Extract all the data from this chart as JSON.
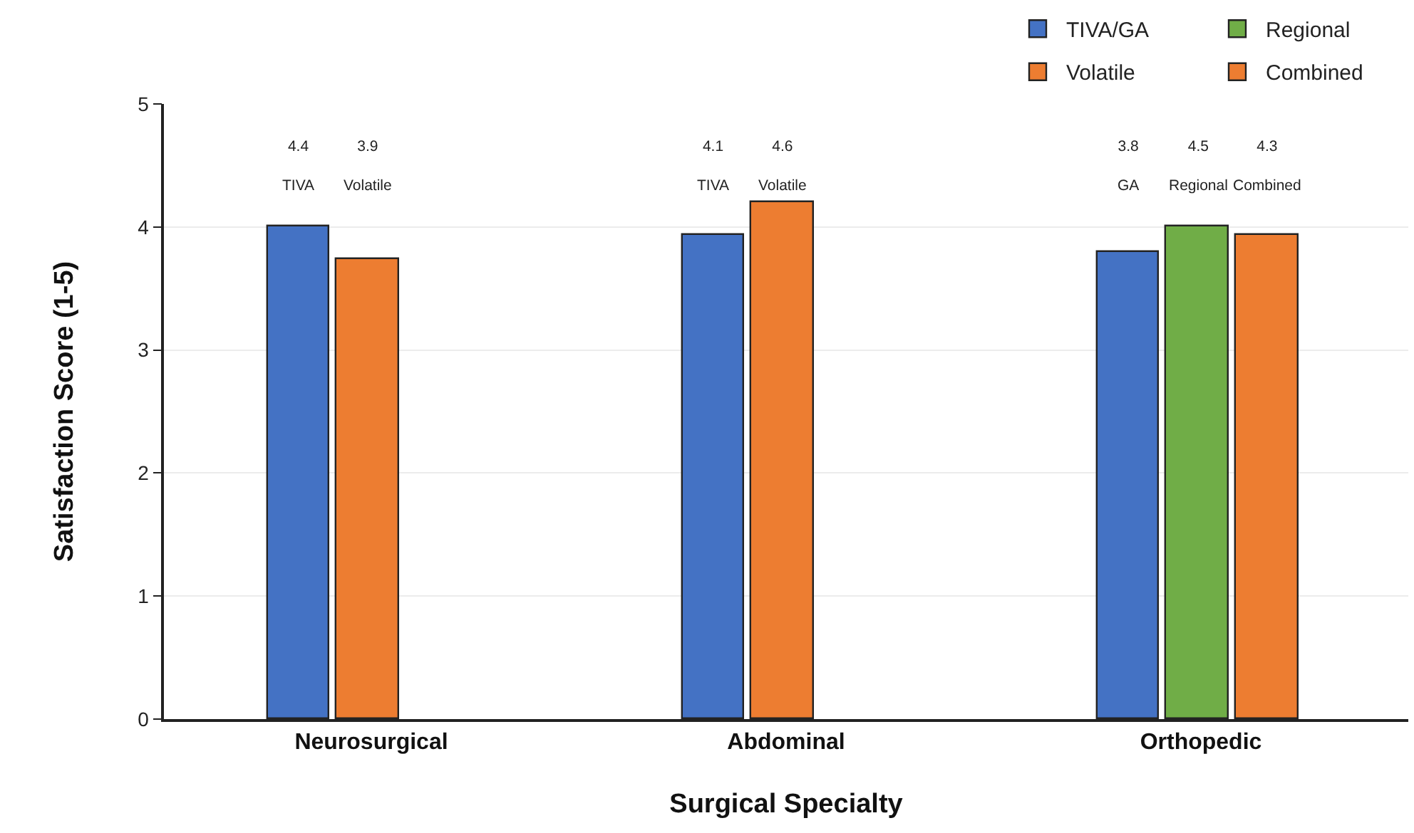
{
  "chart_data": {
    "type": "bar",
    "xlabel": "Surgical Specialty",
    "ylabel": "Satisfaction Score (1-5)",
    "categories": [
      "Neurosurgical",
      "Abdominal",
      "Orthopedic"
    ],
    "series": [
      {
        "name": "TIVA/GA",
        "color": "#4472c4",
        "values": [
          4.0,
          3.94,
          3.8
        ]
      },
      {
        "name": "Regional",
        "color": "#70ad47",
        "values": [
          null,
          null,
          4.0
        ]
      },
      {
        "name": "Volatile",
        "color": "#ed7d31",
        "values": [
          3.74,
          4.2,
          null
        ]
      },
      {
        "name": "Combined",
        "color": "#ed7d31",
        "values": [
          null,
          null,
          3.94
        ]
      }
    ],
    "annotations": [
      "4.4\nTIVA",
      "3.9\nVolatile",
      "4.1\nTIVA",
      "4.6\nVolatile",
      "3.8\nGA",
      "4.5\nRegional",
      "4.3\nCombined"
    ],
    "ylim": [
      0,
      5
    ],
    "yticks": [
      0,
      1,
      2,
      3,
      4,
      5
    ],
    "grid": "y",
    "legend": "top right"
  }
}
